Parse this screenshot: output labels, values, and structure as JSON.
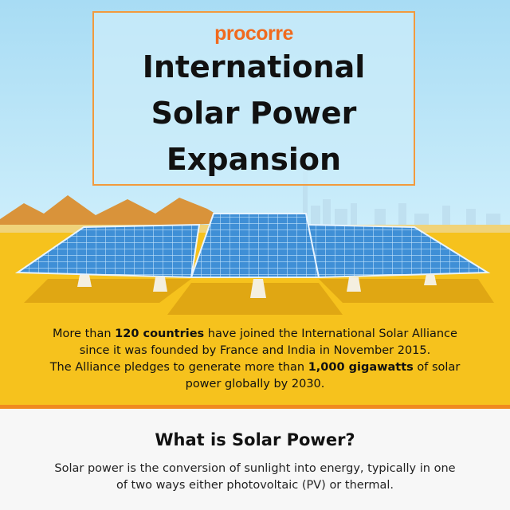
{
  "header": {
    "brand": "procorre",
    "title_lines": [
      "International",
      "Solar Power",
      "Expansion"
    ]
  },
  "intro": {
    "lines": [
      [
        "More than ",
        "120 countries",
        " have joined the International Solar Alliance"
      ],
      [
        "since it was founded by France and India in November 2015."
      ],
      [
        "The Alliance pledges to generate more than ",
        "1,000 gigawatts",
        " of solar"
      ],
      [
        "power globally by 2030."
      ]
    ]
  },
  "section": {
    "title": "What is Solar Power?",
    "body_lines": [
      "Solar power is the conversion of sunlight into energy, typically in one",
      "of two ways either photovoltaic (PV) or thermal."
    ]
  }
}
